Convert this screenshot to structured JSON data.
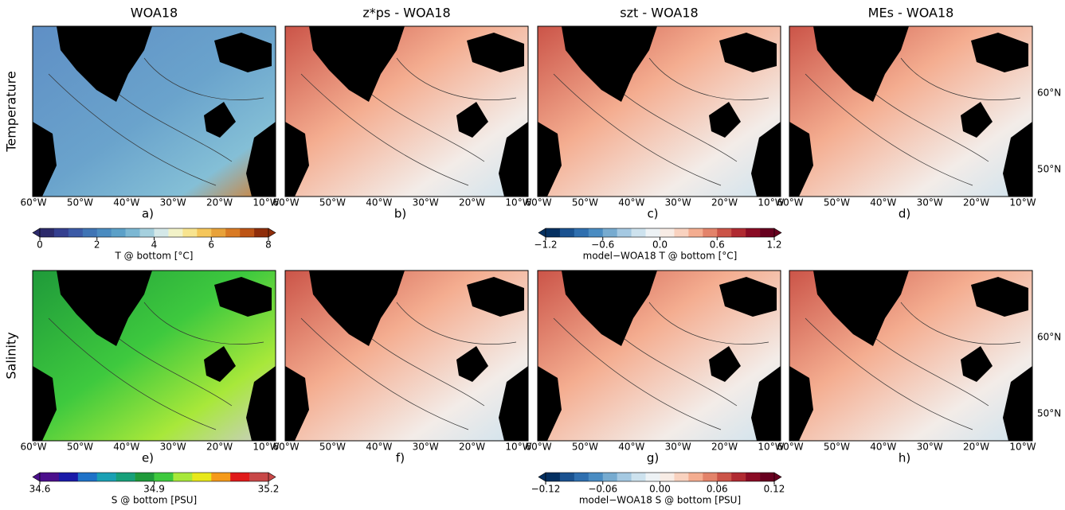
{
  "column_titles": [
    "WOA18",
    "z*ps - WOA18",
    "szt - WOA18",
    "MEs - WOA18"
  ],
  "row_titles": [
    "Temperature",
    "Salinity"
  ],
  "panel_labels": [
    "a)",
    "b)",
    "c)",
    "d)",
    "e)",
    "f)",
    "g)",
    "h)"
  ],
  "lon_ticks": [
    "60°W",
    "50°W",
    "40°W",
    "30°W",
    "20°W",
    "10°W"
  ],
  "lat_ticks": [
    "60°N",
    "50°N"
  ],
  "colorbars": [
    {
      "label": "T @ bottom [°C]",
      "lim": [
        0,
        8
      ],
      "ticks": [
        0,
        2,
        4,
        6,
        8
      ],
      "colors": [
        "#2c2a6b",
        "#343f8f",
        "#3b5aa6",
        "#3f74b5",
        "#4a8bc0",
        "#5ba0c8",
        "#7bb7d3",
        "#a5d0de",
        "#d4e8e8",
        "#f2f2c8",
        "#f8e48f",
        "#f5c65a",
        "#e8a23a",
        "#d97a24",
        "#bd5415",
        "#8f2d0a"
      ]
    },
    {
      "label": "model−WOA18 T @ bottom [°C]",
      "lim": [
        -1.2,
        1.2
      ],
      "ticks": [
        {
          "value": -1.2,
          "label": "−1.2"
        },
        {
          "value": -0.6,
          "label": "−0.6"
        },
        {
          "value": 0,
          "label": "0.0"
        },
        {
          "value": 0.6,
          "label": "0.6"
        },
        {
          "value": 1.2,
          "label": "1.2"
        }
      ],
      "colors": [
        "#053061",
        "#1a5290",
        "#2f6faf",
        "#4a8cc2",
        "#77abd0",
        "#a5c9e2",
        "#cde2ee",
        "#edf2f5",
        "#f8ece5",
        "#f9d2bf",
        "#f4ad90",
        "#e3836a",
        "#cb5448",
        "#b02a31",
        "#8a0b24",
        "#67001f"
      ]
    },
    {
      "label": "S @ bottom [PSU]",
      "lim": [
        34.6,
        35.2
      ],
      "ticks": [
        34.6,
        34.9,
        35.2
      ],
      "colors": [
        "#4b0f8c",
        "#1a1aa8",
        "#1f72c8",
        "#1aa0b4",
        "#17a07a",
        "#1f9a3a",
        "#3ec93e",
        "#a8e83a",
        "#e8e81a",
        "#f59a1a",
        "#e01a1a",
        "#c84848"
      ]
    },
    {
      "label": "model−WOA18 S @ bottom [PSU]",
      "lim": [
        -0.12,
        0.12
      ],
      "ticks": [
        {
          "value": -0.12,
          "label": "−0.12"
        },
        {
          "value": -0.06,
          "label": "−0.06"
        },
        {
          "value": 0,
          "label": "0.00"
        },
        {
          "value": 0.06,
          "label": "0.06"
        },
        {
          "value": 0.12,
          "label": "0.12"
        }
      ],
      "colors": [
        "#053061",
        "#1a5290",
        "#2f6faf",
        "#4a8cc2",
        "#77abd0",
        "#a5c9e2",
        "#cde2ee",
        "#edf2f5",
        "#f8ece5",
        "#f9d2bf",
        "#f4ad90",
        "#e3836a",
        "#cb5448",
        "#b02a31",
        "#8a0b24",
        "#67001f"
      ]
    }
  ]
}
